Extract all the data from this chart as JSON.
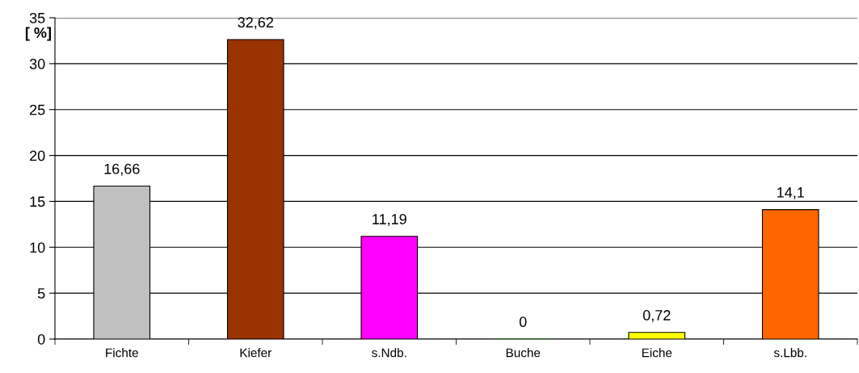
{
  "chart_data": {
    "type": "bar",
    "ylabel": "[ %]",
    "categories": [
      "Fichte",
      "Kiefer",
      "s.Ndb.",
      "Buche",
      "Eiche",
      "s.Lbb."
    ],
    "values": [
      16.66,
      32.62,
      11.19,
      0,
      0.72,
      14.1
    ],
    "value_labels": [
      "16,66",
      "32,62",
      "11,19",
      "0",
      "0,72",
      "14,1"
    ],
    "colors": [
      "#c0c0c0",
      "#993300",
      "#ff00ff",
      "#008000",
      "#ffff00",
      "#ff6600"
    ],
    "ylim": [
      0,
      35
    ],
    "yticks": [
      0,
      5,
      10,
      15,
      20,
      25,
      30,
      35
    ],
    "grid": "y",
    "legend": false
  }
}
